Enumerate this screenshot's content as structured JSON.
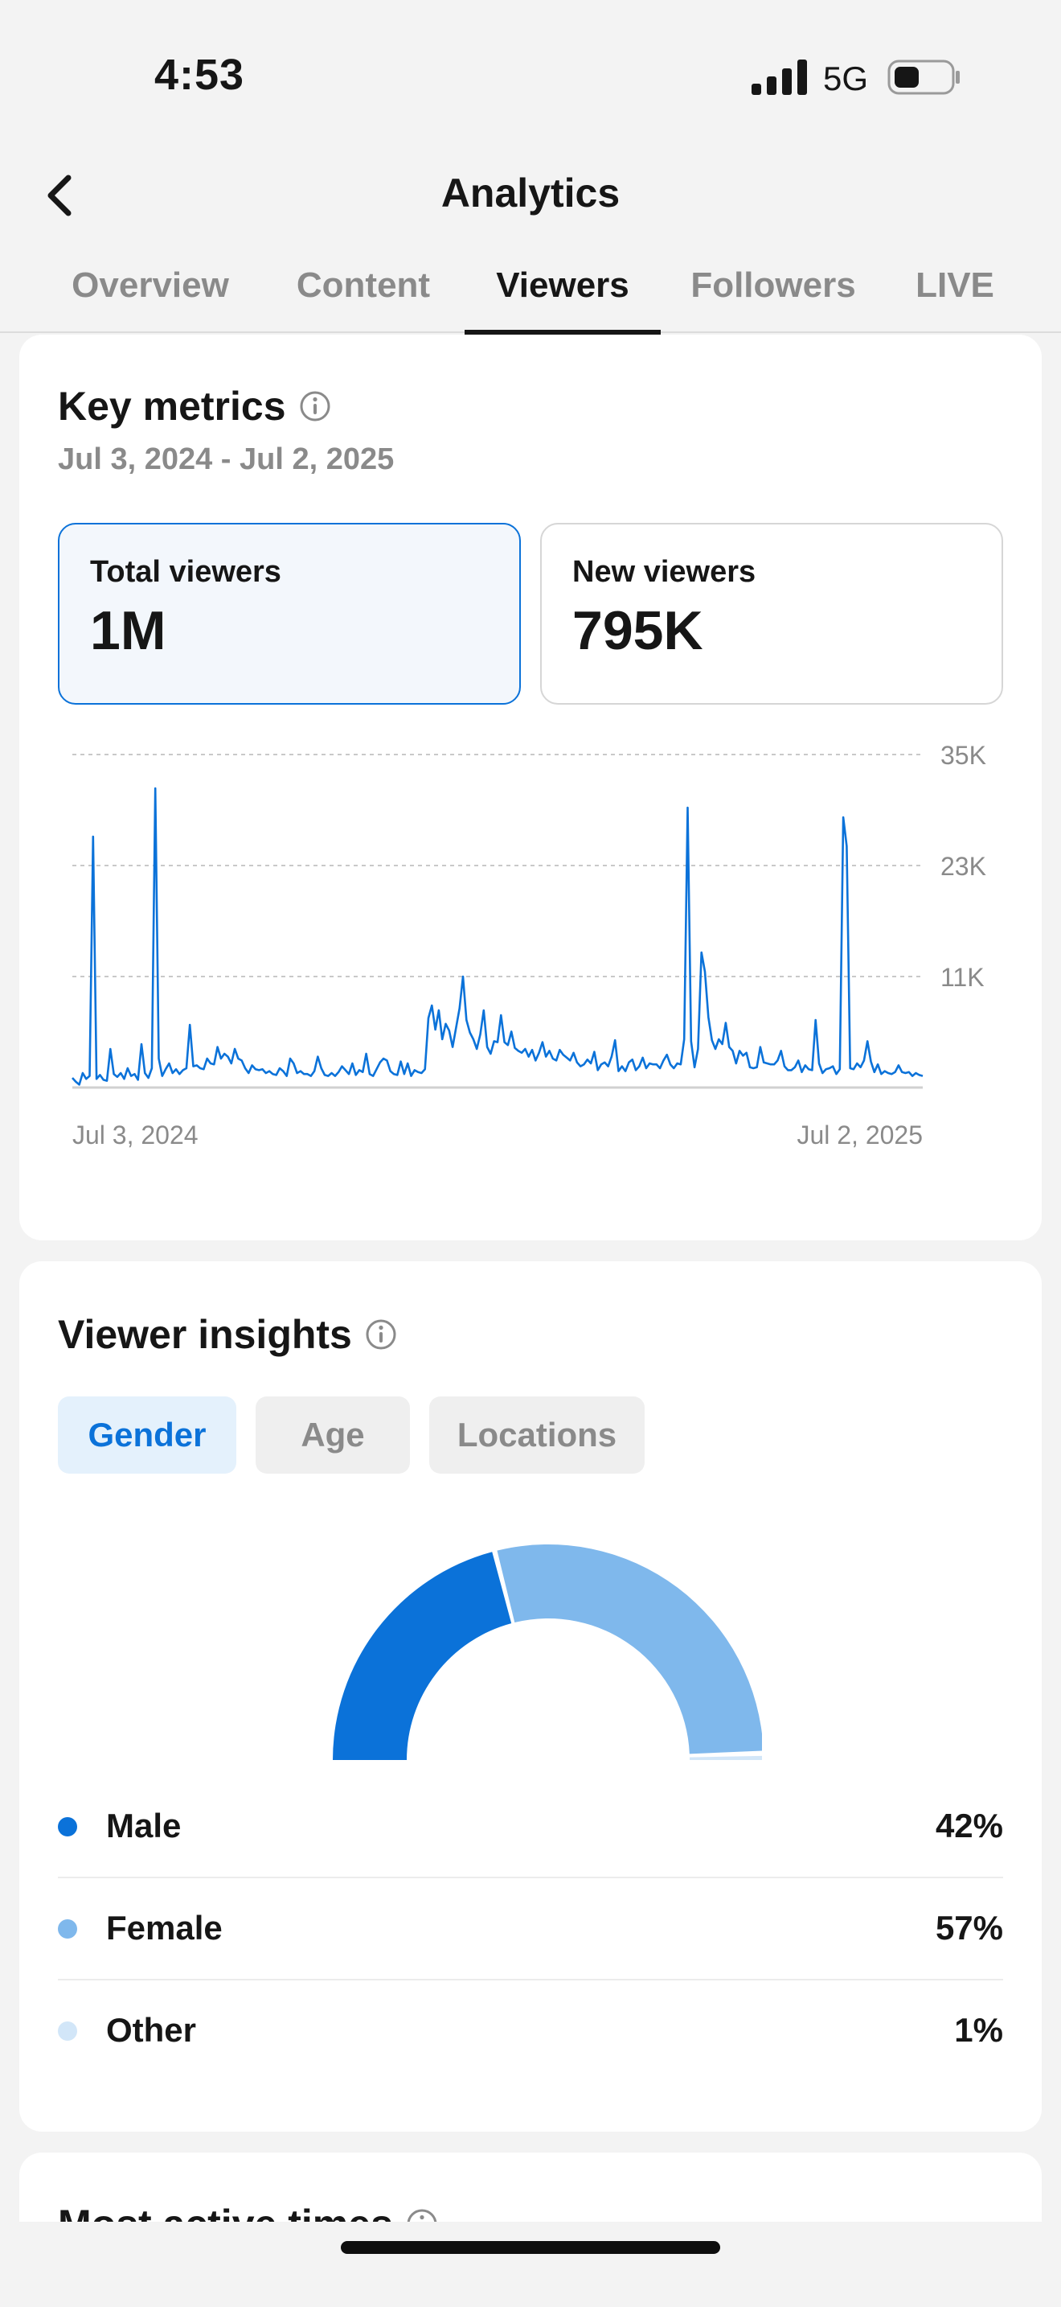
{
  "status_bar": {
    "time": "4:53",
    "network": "5G"
  },
  "header": {
    "title": "Analytics"
  },
  "tabs": [
    {
      "label": "Overview"
    },
    {
      "label": "Content"
    },
    {
      "label": "Viewers"
    },
    {
      "label": "Followers"
    },
    {
      "label": "LIVE"
    }
  ],
  "active_tab": "Viewers",
  "key_metrics": {
    "title": "Key metrics",
    "date_range": "Jul 3, 2024 - Jul 2, 2025",
    "total": {
      "label": "Total viewers",
      "value": "1M"
    },
    "new": {
      "label": "New viewers",
      "value": "795K"
    }
  },
  "chart_data": {
    "type": "line",
    "title": "",
    "series": [
      {
        "name": "Total viewers",
        "values": [
          1000,
          600,
          300,
          1500,
          900,
          1200,
          26000,
          900,
          1300,
          800,
          700,
          4000,
          1400,
          1100,
          1500,
          900,
          2000,
          1200,
          1400,
          800,
          4500,
          1500,
          1000,
          2000,
          31000,
          3000,
          1200,
          1900,
          2500,
          1500,
          1900,
          1400,
          1800,
          2000,
          6500,
          2200,
          2300,
          2000,
          1900,
          3000,
          2500,
          2400,
          4200,
          3000,
          3500,
          3200,
          2500,
          4000,
          3000,
          2800,
          2000,
          1500,
          2300,
          1900,
          1800,
          1900,
          1500,
          1700,
          1400,
          1300,
          2000,
          1700,
          1200,
          3000,
          2500,
          1500,
          1700,
          1400,
          1400,
          1200,
          1700,
          3200,
          2000,
          1300,
          1200,
          1500,
          1200,
          1600,
          2200,
          1800,
          1400,
          2500,
          1300,
          1800,
          1600,
          3500,
          1400,
          1200,
          1900,
          2600,
          3000,
          2800,
          1700,
          1400,
          1300,
          2700,
          1400,
          2500,
          1200,
          1800,
          1600,
          1500,
          1900,
          7200,
          8500,
          6000,
          8000,
          5000,
          6600,
          5900,
          4200,
          6200,
          8200,
          11500,
          7000,
          5700,
          5000,
          4000,
          5500,
          8000,
          4200,
          3500,
          4800,
          4700,
          7500,
          4700,
          4400,
          5800,
          4100,
          3800,
          3600,
          4000,
          3200,
          3900,
          2800,
          3600,
          4700,
          3200,
          3800,
          3000,
          2800,
          3900,
          3400,
          3100,
          2800,
          3600,
          2600,
          2200,
          2400,
          2900,
          2500,
          3700,
          1800,
          2400,
          2600,
          2200,
          3200,
          4900,
          1700,
          2200,
          1700,
          2600,
          2900,
          1800,
          2200,
          3100,
          2000,
          2500,
          2400,
          2400,
          2000,
          2800,
          3400,
          2400,
          2000,
          2500,
          2400,
          5000,
          29000,
          4800,
          2100,
          4000,
          14000,
          12000,
          7300,
          4900,
          4000,
          5000,
          4500,
          6700,
          4200,
          3800,
          2500,
          3800,
          3300,
          3600,
          2100,
          2000,
          2100,
          4200,
          2600,
          2500,
          2400,
          2400,
          2800,
          3800,
          2200,
          1800,
          1800,
          2100,
          2800,
          1600,
          2300,
          1900,
          1800,
          7000,
          2500,
          1500,
          1900,
          2000,
          2200,
          1400,
          1900,
          28000,
          25000,
          2000,
          1900,
          2500,
          2100,
          2800,
          4800,
          2700,
          1600,
          2400,
          1400,
          1700,
          1500,
          1400,
          1600,
          2300,
          1600,
          1500,
          1600,
          1200,
          1500,
          1300,
          1200
        ]
      }
    ],
    "x_labels": [
      "Jul 3, 2024",
      "Jul 2, 2025"
    ],
    "y_ticks": [
      "11K",
      "23K",
      "35K"
    ],
    "y_tick_values": [
      11500,
      23000,
      34500
    ],
    "ylim": [
      0,
      35000
    ],
    "grid": true
  },
  "viewer_insights": {
    "title": "Viewer insights",
    "filters": [
      {
        "label": "Gender"
      },
      {
        "label": "Age"
      },
      {
        "label": "Locations"
      }
    ],
    "active_filter": "Gender",
    "gender": [
      {
        "label": "Male",
        "value": "42%",
        "percent": 42,
        "color": "#0b72d9"
      },
      {
        "label": "Female",
        "value": "57%",
        "percent": 57,
        "color": "#7fb8ec"
      },
      {
        "label": "Other",
        "value": "1%",
        "percent": 1,
        "color": "#d2e6f8"
      }
    ]
  },
  "most_active": {
    "title": "Most active times"
  },
  "colors": {
    "accent": "#0b72d9",
    "accent_light": "#7fb8ec",
    "text": "#161616",
    "muted": "#8a8a8a"
  }
}
